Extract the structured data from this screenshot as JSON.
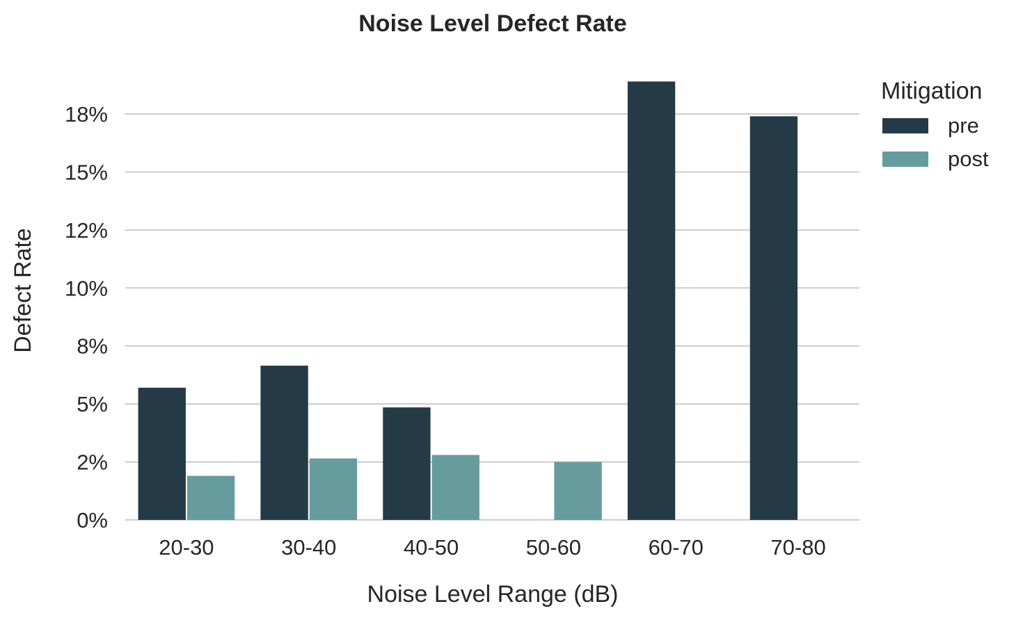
{
  "chart_data": {
    "type": "bar",
    "title": "Noise Level Defect Rate",
    "xlabel": "Noise Level Range (dB)",
    "ylabel": "Defect Rate",
    "categories": [
      "20-30",
      "30-40",
      "40-50",
      "50-60",
      "60-70",
      "70-80"
    ],
    "series": [
      {
        "name": "pre",
        "color": "#253a47",
        "values": [
          5.7,
          6.65,
          4.85,
          0,
          18.9,
          17.4
        ]
      },
      {
        "name": "post",
        "color": "#669c9e",
        "values": [
          1.9,
          2.65,
          2.8,
          2.5,
          0,
          0
        ]
      }
    ],
    "yticks": [
      0,
      2.5,
      5,
      7.5,
      10,
      12.5,
      15,
      17.5
    ],
    "ytick_labels": [
      "0%",
      "2%",
      "5%",
      "8%",
      "10%",
      "12%",
      "15%",
      "18%"
    ],
    "ylim": [
      0,
      19.5
    ],
    "grid": true,
    "legend": {
      "title": "Mitigation",
      "position": "top-right outside"
    }
  }
}
